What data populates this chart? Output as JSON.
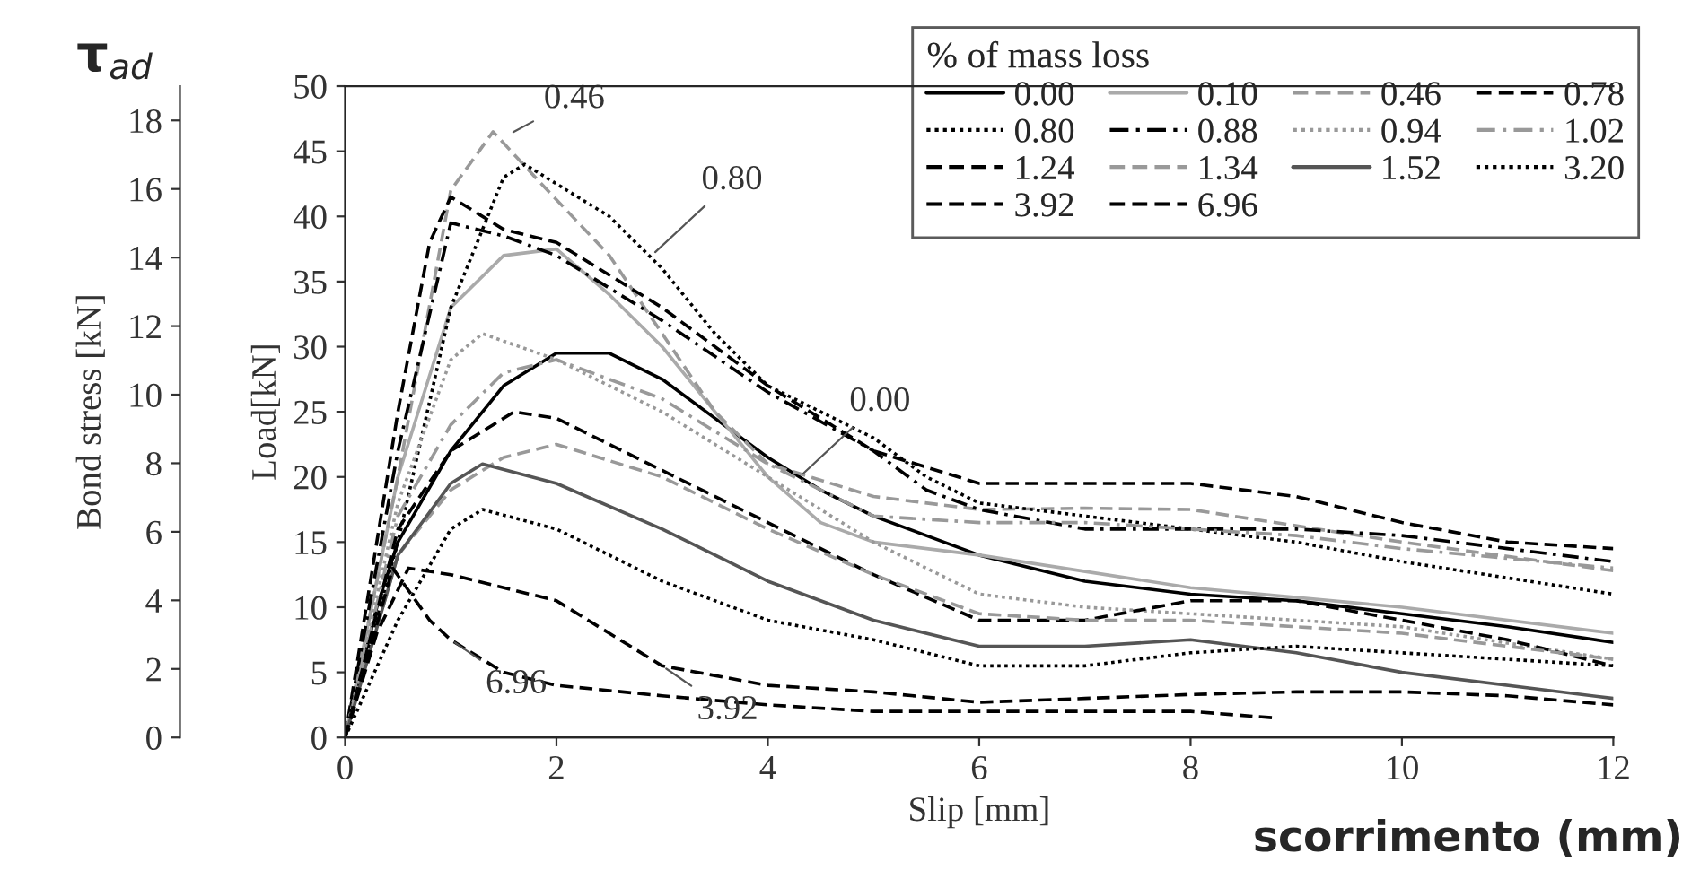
{
  "chart_data": {
    "type": "line",
    "xlabel": "Slip [mm]",
    "ylabel": "Load[kN]",
    "y2label": "Bond stress [kN]",
    "legend_title": "% of mass loss",
    "xlim": [
      0,
      12
    ],
    "xticks": [
      0,
      2,
      4,
      6,
      8,
      10,
      12
    ],
    "ylim": [
      0,
      50
    ],
    "yticks": [
      0,
      5,
      10,
      15,
      20,
      25,
      30,
      35,
      40,
      45,
      50
    ],
    "y2lim": [
      0,
      19
    ],
    "y2ticks": [
      0,
      2,
      4,
      6,
      8,
      10,
      12,
      14,
      16,
      18
    ],
    "grid": false,
    "legend": "top right",
    "annotations": [
      "τ$_{ad}$",
      "scorrimento (mm)",
      {
        "text": "0.46",
        "x": 1.55,
        "y": 46.3
      },
      {
        "text": "0.80",
        "x": 2.9,
        "y": 37
      },
      {
        "text": "0.00",
        "x": 4.3,
        "y": 20
      },
      {
        "text": "3.92",
        "x": 3.0,
        "y": 5.5
      },
      {
        "text": "6.96",
        "x": 1.0,
        "y": 7.5
      }
    ],
    "series": [
      {
        "name": "0.00",
        "color": "#000000",
        "line_style": "solid",
        "x": [
          0,
          0.3,
          0.5,
          1.0,
          1.5,
          2.0,
          2.5,
          3.0,
          3.5,
          4.0,
          4.5,
          5.0,
          5.5,
          6.0,
          7.0,
          8.0,
          9.0,
          10.0,
          11.0,
          12.0
        ],
        "values": [
          0,
          10,
          15,
          22,
          27,
          29.5,
          29.5,
          27.5,
          24.5,
          21.5,
          19,
          17,
          15.5,
          14,
          12,
          11,
          10.5,
          9.5,
          8.5,
          7.3
        ]
      },
      {
        "name": "0.10",
        "color": "#aaaaaa",
        "line_style": "solid",
        "x": [
          0,
          0.5,
          1.0,
          1.5,
          2.0,
          2.5,
          3.0,
          3.5,
          4.0,
          4.5,
          5.0,
          6.0,
          8.0,
          10.0,
          12.0
        ],
        "values": [
          0,
          20,
          33,
          37,
          37.5,
          34,
          30,
          25,
          20,
          16.5,
          15,
          14,
          11.5,
          10,
          8
        ]
      },
      {
        "name": "0.46",
        "color": "#999999",
        "line_style": "dashed",
        "x": [
          0,
          0.5,
          1.0,
          1.4,
          1.8,
          2.5,
          3.0,
          3.5,
          4.0,
          5.0,
          6.0,
          7.0,
          8.0,
          10.0,
          12.0
        ],
        "values": [
          0,
          20,
          42,
          46.5,
          43,
          37,
          31,
          25,
          21,
          18.5,
          17.5,
          17.6,
          17.5,
          15,
          12.8
        ]
      },
      {
        "name": "0.78",
        "color": "#000000",
        "line_style": "dashed",
        "x": [
          0,
          0.5,
          0.8,
          1.0,
          1.5,
          2.0,
          3.0,
          4.0,
          5.0,
          6.0,
          7.0,
          8.0,
          9.0,
          10.0,
          11.0,
          12.0
        ],
        "values": [
          0,
          25,
          38,
          41.5,
          39,
          38,
          33,
          27,
          22,
          19.5,
          19.5,
          19.5,
          18.5,
          16.5,
          15,
          14.5
        ]
      },
      {
        "name": "0.80",
        "color": "#000000",
        "line_style": "dotted",
        "x": [
          0,
          0.5,
          1.0,
          1.5,
          1.7,
          2.5,
          3.0,
          3.5,
          4.0,
          5.0,
          5.5,
          6.0,
          7.0,
          8.0,
          9.0,
          10.0,
          12.0
        ],
        "values": [
          0,
          15,
          33,
          43,
          44,
          40,
          36,
          31,
          27,
          23,
          20,
          18,
          17,
          16,
          15,
          13.5,
          11
        ]
      },
      {
        "name": "0.88",
        "color": "#000000",
        "line_style": "dashdot",
        "x": [
          0,
          0.5,
          1.0,
          1.5,
          2.0,
          3.0,
          4.0,
          5.0,
          5.5,
          6.0,
          7.0,
          8.0,
          9.0,
          10.0,
          11.0,
          12.0
        ],
        "values": [
          0,
          22,
          39.5,
          38.5,
          37,
          32,
          26.5,
          22,
          19,
          17.5,
          16,
          16,
          16,
          15.5,
          14.5,
          13.5
        ]
      },
      {
        "name": "0.94",
        "color": "#999999",
        "line_style": "dotted",
        "x": [
          0,
          0.5,
          1.0,
          1.3,
          2.0,
          3.0,
          4.0,
          5.0,
          6.0,
          7.0,
          8.0,
          9.0,
          10.0,
          12.0
        ],
        "values": [
          0,
          18,
          29,
          31,
          29,
          25,
          20,
          15,
          11,
          10,
          9.5,
          9,
          8.5,
          6
        ]
      },
      {
        "name": "1.02",
        "color": "#999999",
        "line_style": "dashdot",
        "x": [
          0,
          0.5,
          1.0,
          1.5,
          2.0,
          3.0,
          4.0,
          5.0,
          6.0,
          7.0,
          8.0,
          9.0,
          10.0,
          12.0
        ],
        "values": [
          0,
          17,
          24,
          28,
          29,
          26,
          21,
          17,
          16.5,
          16.5,
          16,
          15.5,
          14.5,
          13
        ]
      },
      {
        "name": "1.24",
        "color": "#000000",
        "line_style": "dashed",
        "x": [
          0,
          0.5,
          1.0,
          1.6,
          2.0,
          3.0,
          4.0,
          5.0,
          6.0,
          7.0,
          8.0,
          9.0,
          10.0,
          11.0,
          12.0
        ],
        "values": [
          0,
          16,
          22,
          25,
          24.5,
          20.5,
          16.5,
          12.5,
          9,
          9,
          10.5,
          10.5,
          9,
          7.5,
          5.5
        ]
      },
      {
        "name": "1.34",
        "color": "#999999",
        "line_style": "dashed",
        "x": [
          0,
          0.5,
          1.0,
          1.5,
          2.0,
          3.0,
          4.0,
          5.0,
          6.0,
          7.0,
          8.0,
          10.0,
          12.0
        ],
        "values": [
          0,
          14,
          19,
          21.5,
          22.5,
          20,
          16,
          12.5,
          9.5,
          9,
          9,
          8,
          6
        ]
      },
      {
        "name": "1.52",
        "color": "#555555",
        "line_style": "solid",
        "x": [
          0,
          0.5,
          1.0,
          1.3,
          2.0,
          3.0,
          4.0,
          5.0,
          6.0,
          7.0,
          8.0,
          9.0,
          10.0,
          12.0
        ],
        "values": [
          0,
          14,
          19.5,
          21,
          19.5,
          16,
          12,
          9,
          7,
          7,
          7.5,
          6.5,
          5,
          3
        ]
      },
      {
        "name": "3.20",
        "color": "#000000",
        "line_style": "dotted",
        "x": [
          0,
          0.5,
          1.0,
          1.3,
          2.0,
          3.0,
          4.0,
          5.0,
          6.0,
          7.0,
          8.0,
          9.0,
          10.0,
          12.0
        ],
        "values": [
          0,
          9,
          16,
          17.5,
          16,
          12,
          9,
          7.5,
          5.5,
          5.5,
          6.5,
          7,
          6.5,
          5.5
        ]
      },
      {
        "name": "3.92",
        "color": "#000000",
        "line_style": "dashed",
        "x": [
          0,
          0.3,
          0.6,
          1.0,
          2.0,
          2.5,
          3.0,
          4.0,
          5.0,
          6.0,
          7.0,
          8.0,
          9.0,
          10.0,
          11.0,
          12.0
        ],
        "values": [
          0,
          8,
          13,
          12.5,
          10.5,
          8,
          5.5,
          4,
          3.5,
          2.7,
          3,
          3.3,
          3.5,
          3.5,
          3.2,
          2.5
        ]
      },
      {
        "name": "6.96",
        "color": "#000000",
        "line_style": "dashed",
        "x": [
          0,
          0.45,
          0.8,
          1.0,
          1.5,
          2.0,
          3.0,
          4.0,
          5.0,
          6.0,
          7.0,
          8.0,
          8.8
        ],
        "values": [
          0,
          13,
          9,
          7.5,
          5,
          4,
          3.2,
          2.5,
          2,
          2,
          2,
          2,
          1.5
        ]
      }
    ]
  }
}
